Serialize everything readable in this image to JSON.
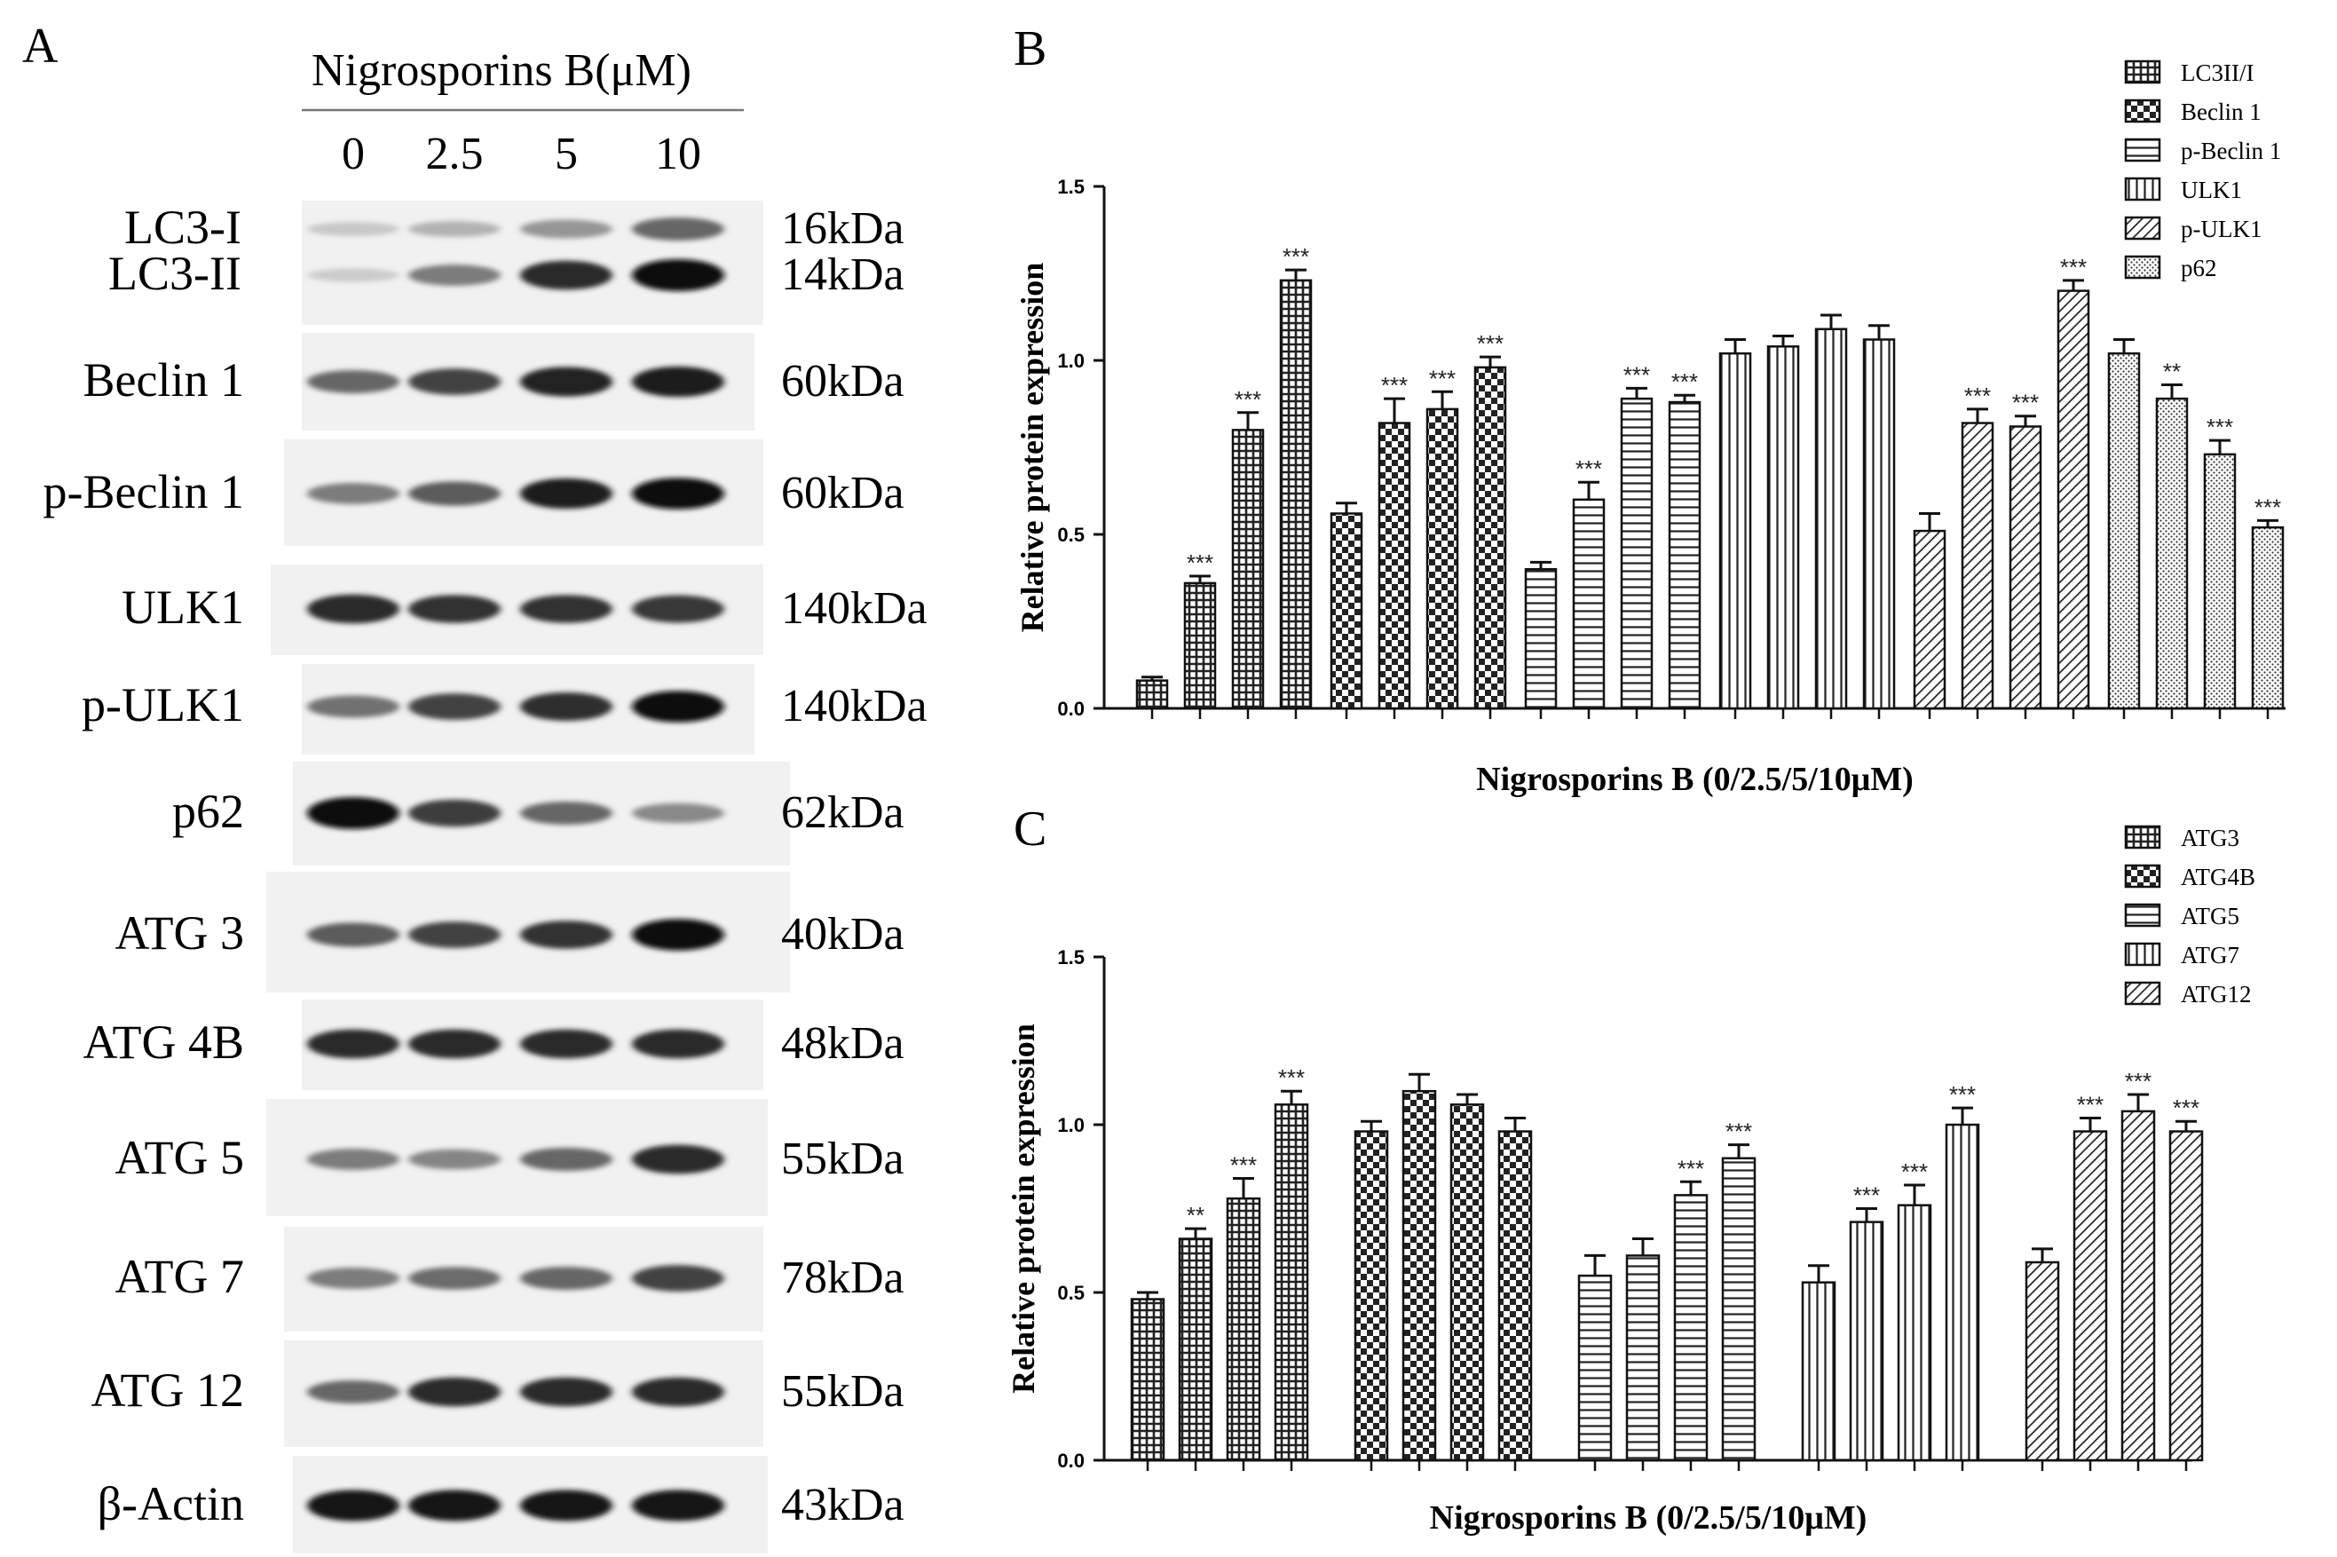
{
  "panel_a": {
    "letter": "A",
    "treatment_label": "Nigrosporins B(μM)",
    "concentrations": [
      "0",
      "2.5",
      "5",
      "10"
    ],
    "blots": [
      {
        "protein": "LC3-I",
        "kda": "16kDa",
        "bands": [
          0.08,
          0.18,
          0.32,
          0.55
        ]
      },
      {
        "protein": "LC3-II",
        "kda": "14kDa",
        "bands": [
          0.06,
          0.45,
          0.85,
          1.0
        ]
      },
      {
        "protein": "Beclin 1",
        "kda": "60kDa",
        "bands": [
          0.55,
          0.72,
          0.88,
          0.92
        ]
      },
      {
        "protein": "p-Beclin 1",
        "kda": "60kDa",
        "bands": [
          0.45,
          0.6,
          0.92,
          0.97
        ]
      },
      {
        "protein": "ULK1",
        "kda": "140kDa",
        "bands": [
          0.85,
          0.8,
          0.8,
          0.78
        ]
      },
      {
        "protein": "p-ULK1",
        "kda": "140kDa",
        "bands": [
          0.5,
          0.72,
          0.82,
          0.97
        ]
      },
      {
        "protein": "p62",
        "kda": "62kDa",
        "bands": [
          1.0,
          0.75,
          0.55,
          0.38
        ]
      },
      {
        "protein": "ATG 3",
        "kda": "40kDa",
        "bands": [
          0.6,
          0.72,
          0.8,
          0.98
        ]
      },
      {
        "protein": "ATG 4B",
        "kda": "48kDa",
        "bands": [
          0.85,
          0.85,
          0.85,
          0.85
        ]
      },
      {
        "protein": "ATG 5",
        "kda": "55kDa",
        "bands": [
          0.45,
          0.4,
          0.55,
          0.85
        ]
      },
      {
        "protein": "ATG 7",
        "kda": "78kDa",
        "bands": [
          0.45,
          0.52,
          0.55,
          0.72
        ]
      },
      {
        "protein": "ATG 12",
        "kda": "55kDa",
        "bands": [
          0.55,
          0.85,
          0.85,
          0.85
        ]
      },
      {
        "protein": "β-Actin",
        "kda": "43kDa",
        "bands": [
          0.95,
          0.95,
          0.95,
          0.95
        ]
      }
    ]
  },
  "chart_data": [
    {
      "panel": "B",
      "type": "bar",
      "xlabel": "Nigrosporins B (0/2.5/5/10μM)",
      "ylabel": "Relative protein expression",
      "ylim": [
        0,
        1.5
      ],
      "yticks": [
        "0.0",
        "0.5",
        "1.0",
        "1.5"
      ],
      "legend_position": "top-right",
      "groups": [
        "LC3II/I",
        "Beclin 1",
        "p-Beclin 1",
        "ULK1",
        "p-ULK1",
        "p62"
      ],
      "series": [
        {
          "name": "LC3II/I",
          "pattern": "grid",
          "values": [
            0.08,
            0.36,
            0.8,
            1.23
          ],
          "errors": [
            0.01,
            0.02,
            0.05,
            0.03
          ],
          "sig": [
            "",
            "***",
            "***",
            "***"
          ]
        },
        {
          "name": "Beclin 1",
          "pattern": "checker",
          "values": [
            0.56,
            0.82,
            0.86,
            0.98
          ],
          "errors": [
            0.03,
            0.07,
            0.05,
            0.03
          ],
          "sig": [
            "",
            "***",
            "***",
            "***"
          ]
        },
        {
          "name": "p-Beclin 1",
          "pattern": "hlines",
          "values": [
            0.4,
            0.6,
            0.89,
            0.88
          ],
          "errors": [
            0.02,
            0.05,
            0.03,
            0.02
          ],
          "sig": [
            "",
            "***",
            "***",
            "***"
          ]
        },
        {
          "name": "ULK1",
          "pattern": "vlines",
          "values": [
            1.02,
            1.04,
            1.09,
            1.06
          ],
          "errors": [
            0.04,
            0.03,
            0.04,
            0.04
          ],
          "sig": [
            "",
            "",
            "",
            ""
          ]
        },
        {
          "name": "p-ULK1",
          "pattern": "diag",
          "values": [
            0.51,
            0.82,
            0.81,
            1.2
          ],
          "errors": [
            0.05,
            0.04,
            0.03,
            0.03
          ],
          "sig": [
            "",
            "***",
            "***",
            "***"
          ]
        },
        {
          "name": "p62",
          "pattern": "dots",
          "values": [
            1.02,
            0.89,
            0.73,
            0.52
          ],
          "errors": [
            0.04,
            0.04,
            0.04,
            0.02
          ],
          "sig": [
            "",
            "**",
            "***",
            "***"
          ]
        }
      ]
    },
    {
      "panel": "C",
      "type": "bar",
      "xlabel": "Nigrosporins B (0/2.5/5/10μM)",
      "ylabel": "Relative protein expression",
      "ylim": [
        0,
        1.5
      ],
      "yticks": [
        "0.0",
        "0.5",
        "1.0",
        "1.5"
      ],
      "legend_position": "top-right",
      "groups": [
        "ATG3",
        "ATG4B",
        "ATG5",
        "ATG7",
        "ATG12"
      ],
      "series": [
        {
          "name": "ATG3",
          "pattern": "grid",
          "values": [
            0.48,
            0.66,
            0.78,
            1.06
          ],
          "errors": [
            0.02,
            0.03,
            0.06,
            0.04
          ],
          "sig": [
            "",
            "**",
            "***",
            "***"
          ]
        },
        {
          "name": "ATG4B",
          "pattern": "checker",
          "values": [
            0.98,
            1.1,
            1.06,
            0.98
          ],
          "errors": [
            0.03,
            0.05,
            0.03,
            0.04
          ],
          "sig": [
            "",
            "",
            "",
            ""
          ]
        },
        {
          "name": "ATG5",
          "pattern": "hlines",
          "values": [
            0.55,
            0.61,
            0.79,
            0.9
          ],
          "errors": [
            0.06,
            0.05,
            0.04,
            0.04
          ],
          "sig": [
            "",
            "",
            "***",
            "***"
          ]
        },
        {
          "name": "ATG7",
          "pattern": "vlines",
          "values": [
            0.53,
            0.71,
            0.76,
            1.0
          ],
          "errors": [
            0.05,
            0.04,
            0.06,
            0.05
          ],
          "sig": [
            "",
            "***",
            "***",
            "***"
          ]
        },
        {
          "name": "ATG12",
          "pattern": "diag",
          "values": [
            0.59,
            0.98,
            1.04,
            0.98
          ],
          "errors": [
            0.04,
            0.04,
            0.05,
            0.03
          ],
          "sig": [
            "",
            "***",
            "***",
            "***"
          ]
        }
      ]
    }
  ]
}
